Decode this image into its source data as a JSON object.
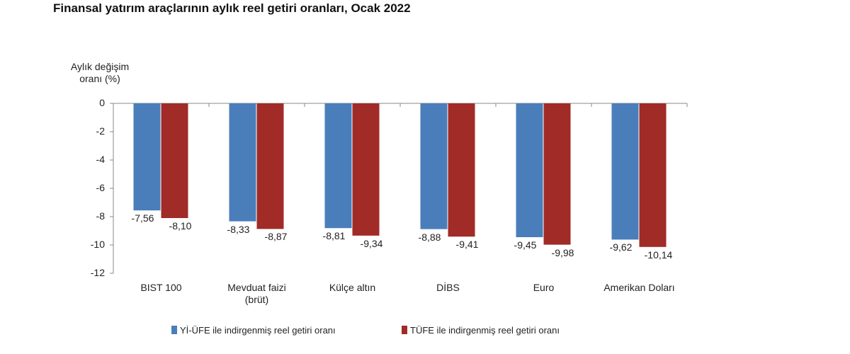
{
  "chart_data": {
    "type": "bar",
    "title": "Finansal yatırım araçlarının aylık reel getiri oranları, Ocak 2022",
    "y_label": "Aylık değişim\noranı (%)",
    "categories": [
      "BIST 100",
      "Mevduat faizi\n(brüt)",
      "Külçe altın",
      "DİBS",
      "Euro",
      "Amerikan Doları"
    ],
    "series": [
      {
        "name": "Yİ-ÜFE ile indirgenmiş reel getiri oranı",
        "color": "#4a7ebb",
        "values": [
          -7.56,
          -8.33,
          -8.81,
          -8.88,
          -9.45,
          -9.62
        ],
        "value_labels": [
          "-7,56",
          "-8,33",
          "-8,81",
          "-8,88",
          "-9,45",
          "-9,62"
        ]
      },
      {
        "name": "TÜFE ile indirgenmiş reel getiri oranı",
        "color": "#a02b27",
        "values": [
          -8.1,
          -8.87,
          -9.34,
          -9.41,
          -9.98,
          -10.14
        ],
        "value_labels": [
          "-8,10",
          "-8,87",
          "-9,34",
          "-9,41",
          "-9,98",
          "-10,14"
        ]
      }
    ],
    "ylim": [
      -12,
      0
    ],
    "yticks": [
      0,
      -2,
      -4,
      -6,
      -8,
      -10,
      -12
    ],
    "grid": false,
    "legend": "bottom"
  }
}
